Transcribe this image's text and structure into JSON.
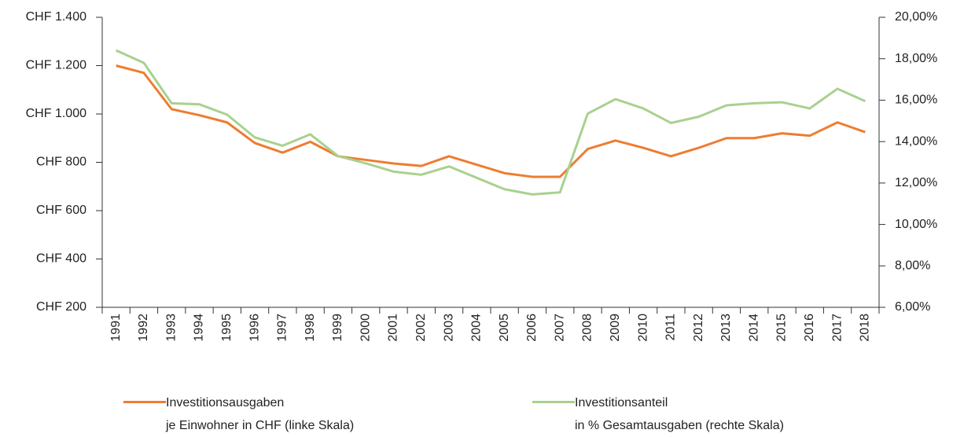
{
  "chart_data": {
    "type": "line",
    "categories": [
      "1991",
      "1992",
      "1993",
      "1994",
      "1995",
      "1996",
      "1997",
      "1998",
      "1999",
      "2000",
      "2001",
      "2002",
      "2003",
      "2004",
      "2005",
      "2006",
      "2007",
      "2008",
      "2009",
      "2010",
      "2011",
      "2012",
      "2013",
      "2014",
      "2015",
      "2016",
      "2017",
      "2018"
    ],
    "series": [
      {
        "name": "Investitionsausgaben\nje Einwohner in CHF (linke Skala)",
        "color": "#ed7d31",
        "axis": "y",
        "values": [
          1200,
          1170,
          1020,
          995,
          965,
          880,
          840,
          885,
          825,
          810,
          795,
          785,
          825,
          790,
          755,
          740,
          740,
          855,
          890,
          860,
          825,
          860,
          900,
          900,
          920,
          910,
          965,
          925
        ]
      },
      {
        "name": "Investitionsanteil\nin % Gesamtausgaben (rechte Skala)",
        "color": "#a9d18e",
        "axis": "y2",
        "values": [
          18.4,
          17.8,
          15.85,
          15.8,
          15.3,
          14.2,
          13.8,
          14.35,
          13.3,
          12.95,
          12.55,
          12.4,
          12.8,
          12.25,
          11.7,
          11.45,
          11.55,
          15.35,
          16.05,
          15.6,
          14.9,
          15.2,
          15.75,
          15.85,
          15.9,
          15.6,
          16.55,
          15.95
        ]
      }
    ],
    "ylim": [
      200,
      1400
    ],
    "yticks": [
      {
        "value": 200,
        "label": "CHF 200"
      },
      {
        "value": 400,
        "label": "CHF 400"
      },
      {
        "value": 600,
        "label": "CHF 600"
      },
      {
        "value": 800,
        "label": "CHF 800"
      },
      {
        "value": 1000,
        "label": "CHF 1.000"
      },
      {
        "value": 1200,
        "label": "CHF 1.200"
      },
      {
        "value": 1400,
        "label": "CHF 1.400"
      }
    ],
    "y2lim": [
      6,
      20
    ],
    "y2ticks": [
      {
        "value": 6,
        "label": "6,00%"
      },
      {
        "value": 8,
        "label": "8,00%"
      },
      {
        "value": 10,
        "label": "10,00%"
      },
      {
        "value": 12,
        "label": "12,00%"
      },
      {
        "value": 14,
        "label": "14,00%"
      },
      {
        "value": 16,
        "label": "16,00%"
      },
      {
        "value": 18,
        "label": "18,00%"
      },
      {
        "value": 20,
        "label": "20,00%"
      }
    ],
    "grid": false,
    "legend": "bottom"
  }
}
